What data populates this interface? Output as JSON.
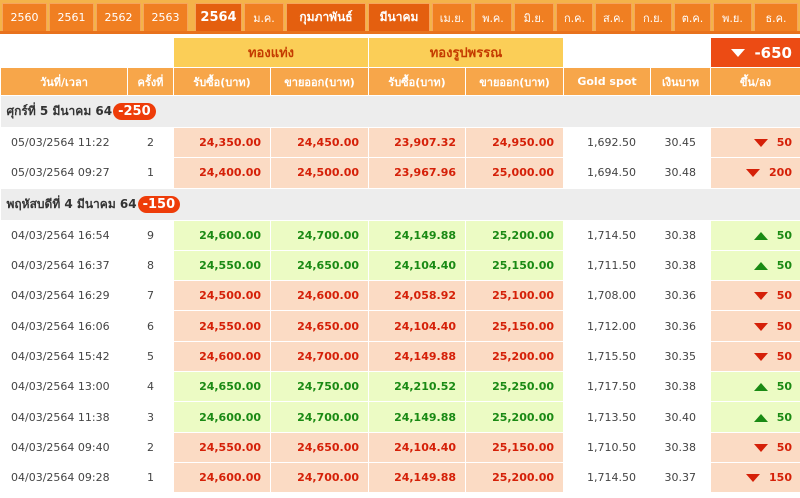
{
  "years": [
    "2560",
    "2561",
    "2562",
    "2563",
    "2564"
  ],
  "months": [
    "ม.ค.",
    "กุมภาพันธ์",
    "มีนาคม",
    "เม.ย.",
    "พ.ค.",
    "มิ.ย.",
    "ก.ค.",
    "ส.ค.",
    "ก.ย.",
    "ต.ค.",
    "พ.ย.",
    "ธ.ค."
  ],
  "active_year": "2564",
  "active_months": [
    "กุมภาพันธ์",
    "มีนาคม"
  ],
  "group_headers": {
    "bar": "ทองแท่ง",
    "ornament": "ทองรูปพรรณ",
    "month_change": "-650",
    "month_change_dir": "down"
  },
  "columns": [
    "วันที่/เวลา",
    "ครั้งที่",
    "รับซื้อ(บาท)",
    "ขายออก(บาท)",
    "รับซื้อ(บาท)",
    "ขายออก(บาท)",
    "Gold spot",
    "เงินบาท",
    "ขึ้น/ลง"
  ],
  "days": [
    {
      "label": "ศุกร์ที่ 5 มีนาคม 64",
      "change": "-250",
      "rows": [
        {
          "time": "05/03/2564 11:22",
          "n": "2",
          "bar_buy": "24,350.00",
          "bar_sell": "24,450.00",
          "orn_buy": "23,907.32",
          "orn_sell": "24,950.00",
          "spot": "1,692.50",
          "thb": "30.45",
          "dir": "down",
          "chg": "50"
        },
        {
          "time": "05/03/2564 09:27",
          "n": "1",
          "bar_buy": "24,400.00",
          "bar_sell": "24,500.00",
          "orn_buy": "23,967.96",
          "orn_sell": "25,000.00",
          "spot": "1,694.50",
          "thb": "30.48",
          "dir": "down",
          "chg": "200"
        }
      ]
    },
    {
      "label": "พฤหัสบดีที่ 4 มีนาคม 64",
      "change": "-150",
      "rows": [
        {
          "time": "04/03/2564 16:54",
          "n": "9",
          "bar_buy": "24,600.00",
          "bar_sell": "24,700.00",
          "orn_buy": "24,149.88",
          "orn_sell": "25,200.00",
          "spot": "1,714.50",
          "thb": "30.38",
          "dir": "up",
          "chg": "50"
        },
        {
          "time": "04/03/2564 16:37",
          "n": "8",
          "bar_buy": "24,550.00",
          "bar_sell": "24,650.00",
          "orn_buy": "24,104.40",
          "orn_sell": "25,150.00",
          "spot": "1,711.50",
          "thb": "30.38",
          "dir": "up",
          "chg": "50"
        },
        {
          "time": "04/03/2564 16:29",
          "n": "7",
          "bar_buy": "24,500.00",
          "bar_sell": "24,600.00",
          "orn_buy": "24,058.92",
          "orn_sell": "25,100.00",
          "spot": "1,708.00",
          "thb": "30.36",
          "dir": "down",
          "chg": "50"
        },
        {
          "time": "04/03/2564 16:06",
          "n": "6",
          "bar_buy": "24,550.00",
          "bar_sell": "24,650.00",
          "orn_buy": "24,104.40",
          "orn_sell": "25,150.00",
          "spot": "1,712.00",
          "thb": "30.36",
          "dir": "down",
          "chg": "50"
        },
        {
          "time": "04/03/2564 15:42",
          "n": "5",
          "bar_buy": "24,600.00",
          "bar_sell": "24,700.00",
          "orn_buy": "24,149.88",
          "orn_sell": "25,200.00",
          "spot": "1,715.50",
          "thb": "30.35",
          "dir": "down",
          "chg": "50"
        },
        {
          "time": "04/03/2564 13:00",
          "n": "4",
          "bar_buy": "24,650.00",
          "bar_sell": "24,750.00",
          "orn_buy": "24,210.52",
          "orn_sell": "25,250.00",
          "spot": "1,717.50",
          "thb": "30.38",
          "dir": "up",
          "chg": "50"
        },
        {
          "time": "04/03/2564 11:38",
          "n": "3",
          "bar_buy": "24,600.00",
          "bar_sell": "24,700.00",
          "orn_buy": "24,149.88",
          "orn_sell": "25,200.00",
          "spot": "1,713.50",
          "thb": "30.40",
          "dir": "up",
          "chg": "50"
        },
        {
          "time": "04/03/2564 09:40",
          "n": "2",
          "bar_buy": "24,550.00",
          "bar_sell": "24,650.00",
          "orn_buy": "24,104.40",
          "orn_sell": "25,150.00",
          "spot": "1,710.50",
          "thb": "30.38",
          "dir": "down",
          "chg": "50"
        },
        {
          "time": "04/03/2564 09:28",
          "n": "1",
          "bar_buy": "24,600.00",
          "bar_sell": "24,700.00",
          "orn_buy": "24,149.88",
          "orn_sell": "25,200.00",
          "spot": "1,714.50",
          "thb": "30.37",
          "dir": "down",
          "chg": "150"
        }
      ]
    }
  ]
}
